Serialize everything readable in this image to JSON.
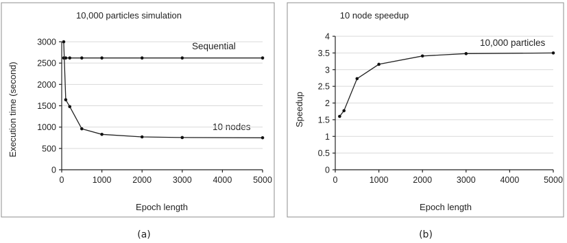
{
  "chart_data": [
    {
      "type": "line",
      "title": "10,000 particles simulation",
      "xlabel": "Epoch length",
      "ylabel": "Execution time (second)",
      "xlim": [
        0,
        5000
      ],
      "ylim": [
        0,
        3000
      ],
      "xticks": [
        "0",
        "1000",
        "2000",
        "3000",
        "4000",
        "5000"
      ],
      "yticks": [
        "0",
        "500",
        "1000",
        "1500",
        "2000",
        "2500",
        "3000"
      ],
      "grid": true,
      "series": [
        {
          "name": "Sequential",
          "x": [
            50,
            100,
            200,
            500,
            1000,
            2000,
            3000,
            5000
          ],
          "y": [
            2620,
            2620,
            2620,
            2620,
            2620,
            2620,
            2620,
            2620
          ]
        },
        {
          "name": "10 nodes",
          "x": [
            50,
            100,
            200,
            500,
            1000,
            2000,
            3000,
            5000
          ],
          "y": [
            3000,
            1640,
            1480,
            960,
            830,
            770,
            755,
            750
          ]
        }
      ],
      "caption": "(a)"
    },
    {
      "type": "line",
      "title": "10 node speedup",
      "xlabel": "Epoch length",
      "ylabel": "Speedup",
      "xlim": [
        0,
        5000
      ],
      "ylim": [
        0,
        4
      ],
      "xticks": [
        "0",
        "1000",
        "2000",
        "3000",
        "4000",
        "5000"
      ],
      "yticks": [
        "0",
        "0.5",
        "1",
        "1.5",
        "2",
        "2.5",
        "3",
        "3.5",
        "4"
      ],
      "grid": true,
      "series": [
        {
          "name": "10,000 particles",
          "x": [
            100,
            200,
            500,
            1000,
            2000,
            3000,
            5000
          ],
          "y": [
            1.6,
            1.77,
            2.73,
            3.16,
            3.41,
            3.48,
            3.5
          ]
        }
      ],
      "caption": "(b)"
    }
  ]
}
